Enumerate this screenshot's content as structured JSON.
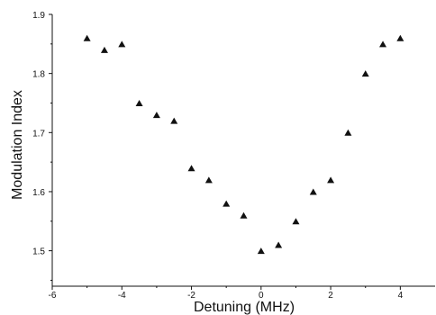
{
  "chart_data": {
    "type": "scatter",
    "title": "",
    "xlabel": "Detuning (MHz)",
    "ylabel": "Modulation Index",
    "xlim": [
      -6,
      5
    ],
    "ylim": [
      1.44,
      1.9
    ],
    "xticks": [
      -6,
      -4,
      -2,
      0,
      2,
      4
    ],
    "xtick_labels": [
      "-6",
      "-4",
      "-2",
      "0",
      "2",
      "4"
    ],
    "yticks": [
      1.5,
      1.6,
      1.7,
      1.8,
      1.9
    ],
    "ytick_labels": [
      "1.5",
      "1.6",
      "1.7",
      "1.8",
      "1.9"
    ],
    "grid": false,
    "marker": "triangle",
    "marker_color": "#111111",
    "series": [
      {
        "x": [
          -5.0,
          -4.5,
          -4.0,
          -3.5,
          -3.0,
          -2.5,
          -2.0,
          -1.5,
          -1.0,
          -0.5,
          0.0,
          0.5,
          1.0,
          1.5,
          2.0,
          2.5,
          3.0,
          3.5,
          4.0
        ],
        "y": [
          1.86,
          1.84,
          1.85,
          1.75,
          1.73,
          1.72,
          1.64,
          1.62,
          1.58,
          1.56,
          1.5,
          1.51,
          1.55,
          1.6,
          1.62,
          1.7,
          1.8,
          1.85,
          1.86
        ]
      }
    ]
  }
}
